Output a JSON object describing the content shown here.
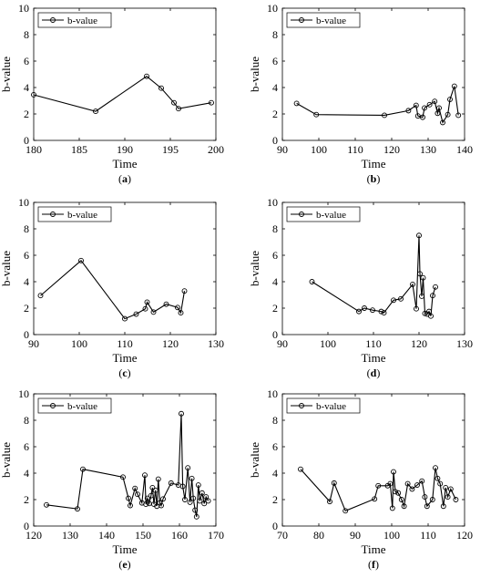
{
  "chart_data": [
    {
      "panel_label": "(a)",
      "type": "line",
      "xlabel": "Time",
      "ylabel": "b-value",
      "xlim": [
        180,
        200
      ],
      "ylim": [
        0,
        10
      ],
      "xticks": [
        180,
        185,
        190,
        195,
        200
      ],
      "yticks": [
        0,
        2,
        4,
        6,
        8,
        10
      ],
      "legend_position": "top-left",
      "series": [
        {
          "name": "b-value",
          "x": [
            180.0,
            186.8,
            192.4,
            194.0,
            195.4,
            195.9,
            199.5
          ],
          "y": [
            3.45,
            2.2,
            4.85,
            3.95,
            2.85,
            2.4,
            2.85
          ]
        }
      ]
    },
    {
      "panel_label": "(b)",
      "type": "line",
      "xlabel": "Time",
      "ylabel": "b-value",
      "xlim": [
        90,
        140
      ],
      "ylim": [
        0,
        10
      ],
      "xticks": [
        90,
        100,
        110,
        120,
        130,
        140
      ],
      "yticks": [
        0,
        2,
        4,
        6,
        8,
        10
      ],
      "legend_position": "top-left",
      "series": [
        {
          "name": "b-value",
          "x": [
            93.9,
            99.3,
            118.0,
            124.6,
            126.7,
            127.2,
            128.5,
            129.0,
            130.4,
            131.8,
            132.6,
            133.0,
            134.0,
            135.4,
            136.0,
            137.2,
            138.3
          ],
          "y": [
            2.8,
            1.95,
            1.9,
            2.25,
            2.65,
            1.85,
            1.75,
            2.45,
            2.7,
            2.95,
            2.05,
            2.45,
            1.35,
            1.95,
            3.1,
            4.1,
            1.9
          ]
        }
      ]
    },
    {
      "panel_label": "(c)",
      "type": "line",
      "xlabel": "Time",
      "ylabel": "b-value",
      "xlim": [
        90,
        130
      ],
      "ylim": [
        0,
        10
      ],
      "xticks": [
        90,
        100,
        110,
        120,
        130
      ],
      "yticks": [
        0,
        2,
        4,
        6,
        8,
        10
      ],
      "legend_position": "top-left",
      "series": [
        {
          "name": "b-value",
          "x": [
            91.5,
            100.4,
            110.0,
            112.5,
            114.5,
            114.9,
            116.3,
            119.1,
            121.6,
            122.3,
            123.1
          ],
          "y": [
            2.95,
            5.6,
            1.2,
            1.55,
            1.95,
            2.45,
            1.7,
            2.3,
            2.05,
            1.65,
            3.3
          ]
        }
      ]
    },
    {
      "panel_label": "(d)",
      "type": "line",
      "xlabel": "Time",
      "ylabel": "b-value",
      "xlim": [
        90,
        130
      ],
      "ylim": [
        0,
        10
      ],
      "xticks": [
        90,
        100,
        110,
        120,
        130
      ],
      "yticks": [
        0,
        2,
        4,
        6,
        8,
        10
      ],
      "legend_position": "top-left",
      "series": [
        {
          "name": "b-value",
          "x": [
            96.5,
            106.8,
            108.0,
            109.8,
            111.7,
            112.3,
            114.4,
            116.0,
            118.6,
            119.4,
            120.0,
            120.2,
            120.6,
            120.9,
            121.3,
            121.8,
            122.2,
            122.6,
            123.0,
            123.6
          ],
          "y": [
            4.0,
            1.75,
            2.0,
            1.85,
            1.75,
            1.65,
            2.6,
            2.7,
            3.8,
            1.95,
            7.5,
            4.6,
            2.9,
            4.3,
            1.6,
            1.55,
            1.75,
            1.4,
            2.95,
            3.6
          ]
        }
      ]
    },
    {
      "panel_label": "(e)",
      "type": "line",
      "xlabel": "Time",
      "ylabel": "b-value",
      "xlim": [
        120,
        170
      ],
      "ylim": [
        0,
        10
      ],
      "xticks": [
        120,
        130,
        140,
        150,
        160,
        170
      ],
      "yticks": [
        0,
        2,
        4,
        6,
        8,
        10
      ],
      "legend_position": "top-left",
      "series": [
        {
          "name": "b-value",
          "x": [
            123.5,
            132.0,
            133.5,
            144.5,
            146.0,
            146.5,
            147.8,
            148.5,
            149.7,
            150.5,
            150.8,
            151.2,
            151.7,
            152.2,
            152.6,
            153.0,
            153.4,
            153.8,
            154.2,
            154.6,
            155.0,
            155.5,
            157.7,
            159.7,
            160.5,
            160.9,
            161.5,
            162.3,
            162.9,
            163.4,
            163.8,
            164.3,
            164.7,
            165.2,
            165.6,
            166.2,
            166.8,
            167.3,
            167.9
          ],
          "y": [
            1.6,
            1.3,
            4.3,
            3.7,
            2.1,
            1.55,
            2.85,
            2.4,
            1.75,
            3.85,
            1.65,
            2.1,
            1.7,
            2.3,
            2.9,
            1.65,
            2.7,
            1.5,
            3.55,
            1.75,
            1.55,
            2.05,
            3.25,
            3.1,
            8.5,
            3.0,
            2.0,
            4.4,
            1.8,
            3.6,
            2.1,
            1.2,
            0.7,
            3.1,
            1.9,
            2.5,
            1.7,
            2.2,
            1.9
          ]
        }
      ]
    },
    {
      "panel_label": "(f)",
      "type": "line",
      "xlabel": "Time",
      "ylabel": "b-value",
      "xlim": [
        70,
        120
      ],
      "ylim": [
        0,
        10
      ],
      "xticks": [
        70,
        80,
        90,
        100,
        110,
        120
      ],
      "yticks": [
        0,
        2,
        4,
        6,
        8,
        10
      ],
      "legend_position": "top-left",
      "series": [
        {
          "name": "b-value",
          "x": [
            75.0,
            83.0,
            84.2,
            87.3,
            95.3,
            96.3,
            98.9,
            99.6,
            100.2,
            100.5,
            101.0,
            101.8,
            102.7,
            103.4,
            104.4,
            105.6,
            107.0,
            108.3,
            109.1,
            109.7,
            111.2,
            112.0,
            112.6,
            113.3,
            114.2,
            114.8,
            115.4,
            116.2,
            117.6
          ],
          "y": [
            4.3,
            1.85,
            3.25,
            1.15,
            2.05,
            3.05,
            3.05,
            3.2,
            1.35,
            4.1,
            2.6,
            2.5,
            2.0,
            1.5,
            3.2,
            2.8,
            3.1,
            3.4,
            2.2,
            1.5,
            2.0,
            4.4,
            3.6,
            3.2,
            1.5,
            2.9,
            2.2,
            2.8,
            2.0
          ]
        }
      ]
    }
  ]
}
